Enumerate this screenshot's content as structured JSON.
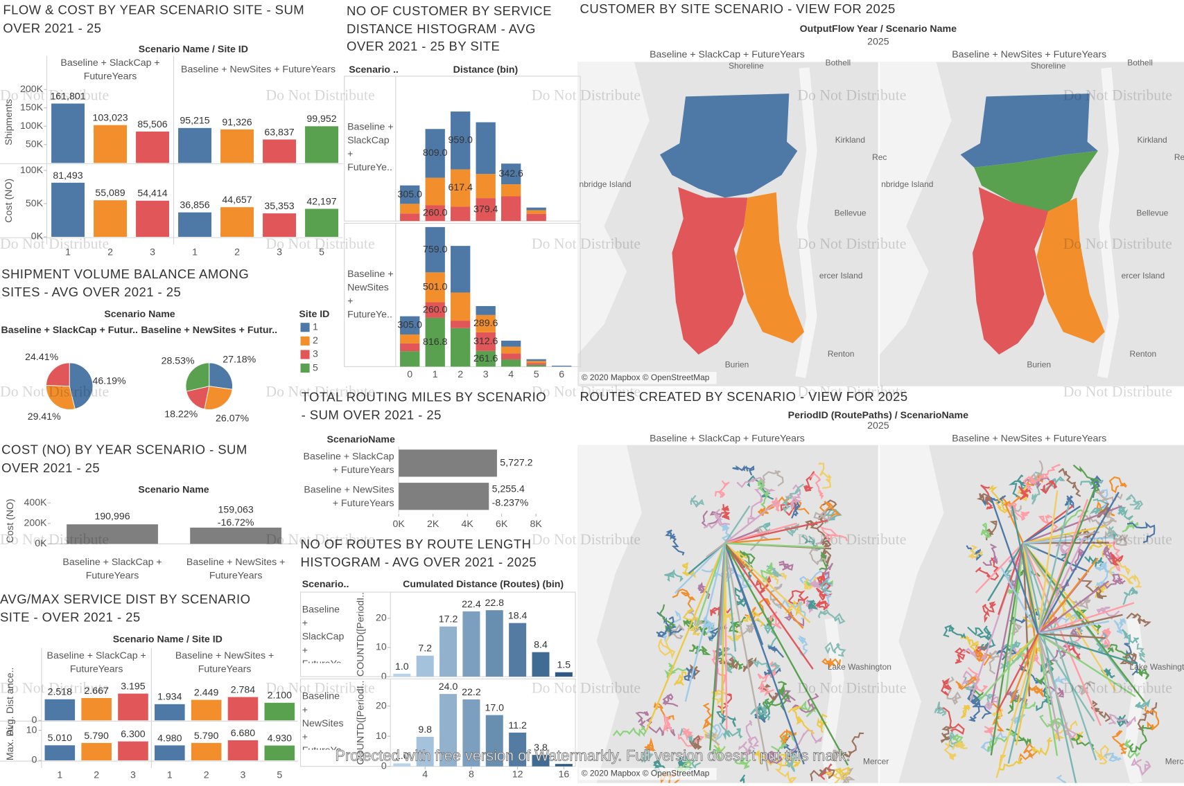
{
  "chart_data": [
    {
      "type": "bar",
      "title": "FLOW & COST BY YEAR SCENARIO SITE - SUM OVER 2021 - 25",
      "column_header": "Scenario Name  /  Site ID",
      "groups": [
        {
          "name": "Baseline + SlackCap + FutureYears",
          "categories": [
            "1",
            "2",
            "3"
          ]
        },
        {
          "name": "Baseline + NewSites + FutureYears",
          "categories": [
            "1",
            "2",
            "3",
            "5"
          ]
        }
      ],
      "colors": {
        "1": "#4e79a7",
        "2": "#f28e2b",
        "3": "#e15759",
        "5": "#59a14f"
      },
      "panels": [
        {
          "ylabel": "Shipments",
          "values": [
            161801,
            103023,
            85506,
            95215,
            91326,
            63837,
            99952
          ],
          "value_labels": [
            "161,801",
            "103,023",
            "85,506",
            "95,215",
            "91,326",
            "63,837",
            "99,952"
          ],
          "ylim": [
            0,
            222000
          ],
          "yticks": [
            {
              "value": 50000,
              "label": "50K"
            },
            {
              "value": 100000,
              "label": "100K"
            },
            {
              "value": 150000,
              "label": "150K"
            },
            {
              "value": 200000,
              "label": "200K"
            }
          ]
        },
        {
          "ylabel": "Cost (NO)",
          "values": [
            81493,
            55089,
            54414,
            36856,
            44657,
            35353,
            42197
          ],
          "value_labels": [
            "81,493",
            "55,089",
            "54,414",
            "36,856",
            "44,657",
            "35,353",
            "42,197"
          ],
          "ylim": [
            0,
            109000
          ],
          "yticks": [
            {
              "value": 0,
              "label": "0K"
            },
            {
              "value": 50000,
              "label": "50K"
            },
            {
              "value": 100000,
              "label": "100K"
            }
          ]
        }
      ]
    },
    {
      "type": "pie",
      "title": "SHIPMENT VOLUME BALANCE AMONG SITES - AVG OVER 2021 - 25",
      "column_header": "Scenario Name",
      "legend_title": "Site ID",
      "legend": [
        "1",
        "2",
        "3",
        "5"
      ],
      "colors": {
        "1": "#4e79a7",
        "2": "#f28e2b",
        "3": "#e15759",
        "5": "#59a14f"
      },
      "pies": [
        {
          "name": "Baseline + SlackCap + Futur..",
          "categories": [
            "1",
            "2",
            "3"
          ],
          "values": [
            46.19,
            29.41,
            24.41
          ],
          "value_labels": [
            "46.19%",
            "29.41%",
            "24.41%"
          ]
        },
        {
          "name": "Baseline + NewSites + Futur..",
          "categories": [
            "1",
            "2",
            "3",
            "5"
          ],
          "values": [
            27.18,
            26.07,
            18.22,
            28.53
          ],
          "value_labels": [
            "27.18%",
            "26.07%",
            "18.22%",
            "28.53%"
          ]
        }
      ]
    },
    {
      "type": "bar",
      "title": "COST (NO) BY YEAR SCENARIO - SUM OVER 2021 - 25",
      "column_header": "Scenario Name",
      "ylabel": "Cost (NO)",
      "categories": [
        "Baseline + SlackCap + FutureYears",
        "Baseline + NewSites + FutureYears"
      ],
      "values": [
        190996,
        159063
      ],
      "value_labels": [
        "190,996",
        "159,063"
      ],
      "annotations": [
        null,
        "-16.72%"
      ],
      "color": "#7f7f7f",
      "ylim": [
        0,
        450000
      ],
      "yticks": [
        {
          "value": 0,
          "label": "0K"
        },
        {
          "value": 200000,
          "label": "200K"
        },
        {
          "value": 400000,
          "label": "400K"
        }
      ]
    },
    {
      "type": "bar",
      "title": "AVG/MAX SERVICE DIST BY SCENARIO SITE - OVER 2021 - 25",
      "column_header": "Scenario Name  /  Site ID",
      "groups": [
        {
          "name": "Baseline + SlackCap + FutureYears",
          "categories": [
            "1",
            "2",
            "3"
          ]
        },
        {
          "name": "Baseline + NewSites + FutureYears",
          "categories": [
            "1",
            "2",
            "3",
            "5"
          ]
        }
      ],
      "colors": {
        "1": "#4e79a7",
        "2": "#f28e2b",
        "3": "#e15759",
        "5": "#59a14f"
      },
      "panels": [
        {
          "ylabel": "Avg. Dist ance..",
          "values": [
            2.518,
            2.667,
            3.195,
            1.934,
            2.449,
            2.784,
            2.1
          ],
          "value_labels": [
            "2.518",
            "2.667",
            "3.195",
            "1.934",
            "2.449",
            "2.784",
            "2.100"
          ],
          "ylim": [
            0,
            4.5
          ],
          "yticks": [
            0
          ]
        },
        {
          "ylabel": "Max. Di..",
          "values": [
            5.01,
            5.79,
            6.3,
            4.98,
            5.79,
            6.68,
            4.93
          ],
          "value_labels": [
            "5.010",
            "5.790",
            "6.300",
            "4.980",
            "5.790",
            "6.680",
            "4.930"
          ],
          "ylim": [
            0,
            12.8
          ],
          "yticks": [
            0,
            10
          ]
        }
      ]
    },
    {
      "type": "histogram",
      "stacked": true,
      "title": "NO OF CUSTOMER BY SERVICE DISTANCE HISTOGRAM - AVG OVER 2021 - 25 BY SITE",
      "row_header": "Scenario ..",
      "x_label": "Distance (bin)",
      "categories": [
        0,
        1,
        2,
        3,
        4,
        5,
        6
      ],
      "ylim": [
        0,
        2400
      ],
      "panels": [
        {
          "name": "Baseline + SlackCap + FutureYe..",
          "series": [
            {
              "name": "3",
              "color": "#e15759",
              "values": [
                124,
                260,
                238,
                379.4,
                409,
                120,
                0
              ],
              "value_labels": [
                null,
                "260.0",
                null,
                "379.4",
                null,
                null,
                null
              ]
            },
            {
              "name": "2",
              "color": "#f28e2b",
              "values": [
                161,
                456,
                617.4,
                400,
                200,
                60,
                0
              ],
              "value_labels": [
                null,
                null,
                "617.4",
                null,
                null,
                null,
                null
              ]
            },
            {
              "name": "1",
              "color": "#4e79a7",
              "values": [
                305,
                809,
                959,
                857,
                342.6,
                43,
                0
              ],
              "value_labels": [
                "305.0",
                "809.0",
                "959.0",
                null,
                "342.6",
                null,
                null
              ]
            }
          ]
        },
        {
          "name": "Baseline + NewSites + FutureYe..",
          "series": [
            {
              "name": "5",
              "color": "#59a14f",
              "values": [
                258,
                816.8,
                645,
                261.6,
                120,
                30,
                0
              ],
              "value_labels": [
                null,
                "816.8",
                null,
                "261.6",
                null,
                null,
                null
              ]
            },
            {
              "name": "3",
              "color": "#e15759",
              "values": [
                130,
                260,
                124,
                312.6,
                100,
                30,
                0
              ],
              "value_labels": [
                null,
                "260.0",
                null,
                "312.6",
                null,
                null,
                null
              ]
            },
            {
              "name": "2",
              "color": "#f28e2b",
              "values": [
                150,
                501,
                471,
                289.6,
                114,
                34,
                0
              ],
              "value_labels": [
                null,
                "501.0",
                null,
                "289.6",
                null,
                null,
                null
              ]
            },
            {
              "name": "1",
              "color": "#4e79a7",
              "values": [
                305,
                759,
                781,
                150,
                100,
                30,
                15
              ],
              "value_labels": [
                "305.0",
                "759.0",
                null,
                null,
                null,
                null,
                null
              ]
            }
          ]
        }
      ]
    },
    {
      "type": "bar",
      "orientation": "horizontal",
      "title": "TOTAL ROUTING MILES BY SCENARIO - SUM OVER 2021 - 25",
      "row_header": "ScenarioName",
      "categories": [
        "Baseline + SlackCap + FutureYears",
        "Baseline + NewSites + FutureYears"
      ],
      "values": [
        5727.2,
        5255.4
      ],
      "value_labels": [
        "5,727.2",
        "5,255.4"
      ],
      "annotations": [
        null,
        "-8.237%"
      ],
      "color": "#7f7f7f",
      "xlim": [
        0,
        8800
      ],
      "xticks": [
        {
          "value": 0,
          "label": "0K"
        },
        {
          "value": 2000,
          "label": "2K"
        },
        {
          "value": 4000,
          "label": "4K"
        },
        {
          "value": 6000,
          "label": "6K"
        },
        {
          "value": 8000,
          "label": "8K"
        }
      ]
    },
    {
      "type": "histogram",
      "title": "NO OF ROUTES BY ROUTE LENGTH HISTOGRAM - AVG OVER 2021 - 2025",
      "row_header": "Scenario..",
      "x_label": "Cumulated Distance (Routes) (bin)",
      "x": [
        2,
        4,
        6,
        8,
        10,
        12,
        14,
        16
      ],
      "xlim": [
        1,
        17
      ],
      "xticks": [
        4,
        8,
        12,
        16
      ],
      "color_range": [
        "#b9d4ea",
        "#2c5985"
      ],
      "panels": [
        {
          "name": "Baseline + SlackCap + FutureYe..",
          "ylabel": "COUNTD([PeriodI..",
          "values": [
            1.0,
            7.2,
            17.2,
            22.4,
            22.8,
            18.4,
            8.4,
            1.5
          ],
          "value_labels": [
            "1.0",
            "7.2",
            "17.2",
            "22.4",
            "22.8",
            "18.4",
            "8.4",
            "1.5"
          ],
          "ylim": [
            0,
            29
          ],
          "yticks": [
            0,
            10,
            20
          ]
        },
        {
          "name": "Baseline + NewSites + FutureYe..",
          "ylabel": "COUNTD([PeriodI..",
          "values": [
            1.0,
            9.8,
            24.0,
            22.2,
            17.0,
            11.2,
            3.8,
            0.8
          ],
          "value_labels": [
            "1.0",
            "9.8",
            "24.0",
            "22.2",
            "17.0",
            "11.2",
            "3.8",
            null
          ],
          "ylim": [
            0,
            29
          ],
          "yticks": [
            0,
            10,
            20
          ]
        }
      ]
    }
  ],
  "maps": [
    {
      "title": "CUSTOMER BY SITE SCENARIO - VIEW FOR 2025",
      "header": "OutputFlow Year  /  Scenario Name",
      "year": "2025",
      "panes": [
        "Baseline + SlackCap + FutureYears",
        "Baseline + NewSites + FutureYears"
      ],
      "places": [
        "Shoreline",
        "Bothell",
        "Kirkland",
        "Rec",
        "nbridge Island",
        "Bellevue",
        "ercer Island",
        "Renton",
        "Burien"
      ],
      "attribution": "© 2020 Mapbox © OpenStreetMap"
    },
    {
      "title": "ROUTES CREATED BY SCENARIO - VIEW FOR 2025",
      "header": "PeriodID (RoutePaths)  /  ScenarioName",
      "year": "2025",
      "panes": [
        "Baseline + SlackCap + FutureYears",
        "Baseline + NewSites + FutureYears"
      ],
      "places": [
        "Lake Washington",
        "Mercer"
      ],
      "attribution": "© 2020 Mapbox © OpenStreetMap"
    }
  ],
  "watermark": "Do Not Distribute",
  "footer_watermark": "Protected with free version of Watermarkly. Full version doesn't put this mark."
}
